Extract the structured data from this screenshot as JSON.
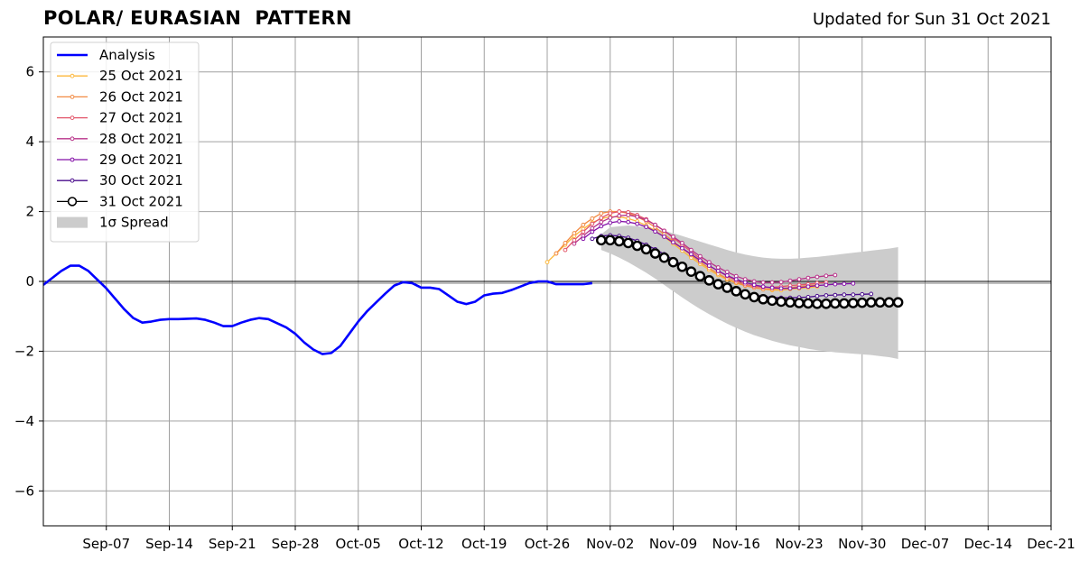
{
  "header": {
    "title": "POLAR/ EURASIAN  PATTERN",
    "subtitle": "Updated for Sun 31 Oct 2021"
  },
  "chart_data": {
    "type": "line",
    "title": "POLAR/ EURASIAN  PATTERN",
    "xlabel": "",
    "ylabel": "",
    "ylim": [
      -7,
      7
    ],
    "xlim": [
      "2021-08-31",
      "2021-12-21"
    ],
    "grid": true,
    "legend_position": "top-left",
    "x_ticks": [
      "Sep-07",
      "Sep-14",
      "Sep-21",
      "Sep-28",
      "Oct-05",
      "Oct-12",
      "Oct-19",
      "Oct-26",
      "Nov-02",
      "Nov-09",
      "Nov-16",
      "Nov-23",
      "Nov-30",
      "Dec-07",
      "Dec-14",
      "Dec-21"
    ],
    "y_ticks": [
      -6,
      -4,
      -2,
      0,
      2,
      4,
      6
    ],
    "series": [
      {
        "name": "Analysis",
        "color": "#0000ff",
        "start": "2021-08-31",
        "values": [
          -0.1,
          0.1,
          0.3,
          0.45,
          0.45,
          0.3,
          0.05,
          -0.2,
          -0.5,
          -0.8,
          -1.05,
          -1.18,
          -1.15,
          -1.1,
          -1.08,
          -1.08,
          -1.07,
          -1.06,
          -1.1,
          -1.18,
          -1.28,
          -1.28,
          -1.18,
          -1.1,
          -1.05,
          -1.08,
          -1.2,
          -1.32,
          -1.5,
          -1.75,
          -1.95,
          -2.08,
          -2.05,
          -1.85,
          -1.5,
          -1.15,
          -0.85,
          -0.6,
          -0.35,
          -0.12,
          -0.02,
          -0.05,
          -0.18,
          -0.18,
          -0.22,
          -0.4,
          -0.58,
          -0.65,
          -0.58,
          -0.4,
          -0.35,
          -0.33,
          -0.25,
          -0.15,
          -0.05,
          0.0,
          0.0,
          -0.08,
          -0.08,
          -0.08,
          -0.08,
          -0.05
        ]
      },
      {
        "name": "25 Oct 2021",
        "color": "#fcb73b",
        "start": "2021-10-26",
        "values": [
          0.55,
          0.8,
          1.05,
          1.3,
          1.5,
          1.68,
          1.8,
          1.85,
          1.85,
          1.8,
          1.72,
          1.6,
          1.45,
          1.28,
          1.08,
          0.88,
          0.68,
          0.5,
          0.33,
          0.18,
          0.05,
          -0.05,
          -0.12,
          -0.18,
          -0.22,
          -0.25,
          -0.25,
          -0.22,
          -0.2,
          -0.18,
          -0.15
        ]
      },
      {
        "name": "26 Oct 2021",
        "color": "#f28a42",
        "start": "2021-10-27",
        "values": [
          0.8,
          1.1,
          1.38,
          1.62,
          1.8,
          1.95,
          2.0,
          2.0,
          1.95,
          1.85,
          1.72,
          1.55,
          1.35,
          1.15,
          0.95,
          0.75,
          0.55,
          0.38,
          0.22,
          0.08,
          -0.03,
          -0.12,
          -0.18,
          -0.22,
          -0.22,
          -0.2,
          -0.18,
          -0.15,
          -0.12,
          -0.1
        ]
      },
      {
        "name": "27 Oct 2021",
        "color": "#e2566a",
        "start": "2021-10-28",
        "values": [
          0.9,
          1.18,
          1.42,
          1.65,
          1.82,
          1.95,
          2.0,
          1.98,
          1.9,
          1.78,
          1.62,
          1.45,
          1.25,
          1.05,
          0.85,
          0.65,
          0.45,
          0.3,
          0.15,
          0.02,
          -0.08,
          -0.14,
          -0.17,
          -0.17,
          -0.15,
          -0.12,
          -0.1,
          -0.08,
          -0.05,
          -0.03
        ]
      },
      {
        "name": "28 Oct 2021",
        "color": "#b83289",
        "start": "2021-10-29",
        "values": [
          1.08,
          1.3,
          1.52,
          1.7,
          1.82,
          1.88,
          1.9,
          1.85,
          1.76,
          1.62,
          1.45,
          1.28,
          1.1,
          0.9,
          0.72,
          0.55,
          0.4,
          0.27,
          0.15,
          0.06,
          0.0,
          -0.03,
          -0.03,
          -0.02,
          0.02,
          0.06,
          0.1,
          0.13,
          0.16,
          0.18
        ]
      },
      {
        "name": "29 Oct 2021",
        "color": "#8410a8",
        "start": "2021-10-30",
        "values": [
          1.22,
          1.42,
          1.58,
          1.68,
          1.72,
          1.7,
          1.65,
          1.56,
          1.43,
          1.28,
          1.12,
          0.95,
          0.78,
          0.6,
          0.45,
          0.3,
          0.17,
          0.06,
          -0.03,
          -0.1,
          -0.15,
          -0.18,
          -0.2,
          -0.2,
          -0.18,
          -0.15,
          -0.12,
          -0.1,
          -0.08,
          -0.07,
          -0.06
        ]
      },
      {
        "name": "30 Oct 2021",
        "color": "#4a0c8c",
        "start": "2021-10-31",
        "values": [
          1.22,
          1.3,
          1.32,
          1.3,
          1.25,
          1.16,
          1.05,
          0.92,
          0.78,
          0.62,
          0.47,
          0.32,
          0.18,
          0.05,
          -0.07,
          -0.17,
          -0.26,
          -0.33,
          -0.39,
          -0.43,
          -0.46,
          -0.47,
          -0.47,
          -0.46,
          -0.45,
          -0.42,
          -0.4,
          -0.39,
          -0.38,
          -0.38,
          -0.37,
          -0.36
        ]
      },
      {
        "name": "31 Oct 2021",
        "color": "#000000",
        "start": "2021-11-01",
        "values": [
          1.18,
          1.18,
          1.15,
          1.1,
          1.02,
          0.92,
          0.8,
          0.68,
          0.55,
          0.42,
          0.28,
          0.15,
          0.03,
          -0.08,
          -0.18,
          -0.28,
          -0.37,
          -0.45,
          -0.51,
          -0.55,
          -0.58,
          -0.6,
          -0.62,
          -0.63,
          -0.64,
          -0.64,
          -0.63,
          -0.63,
          -0.62,
          -0.61,
          -0.6,
          -0.6,
          -0.6,
          -0.6
        ]
      }
    ],
    "spread": {
      "name": "1σ Spread",
      "color": "#cccccc",
      "start": "2021-11-01",
      "lower": [
        0.9,
        0.8,
        0.68,
        0.55,
        0.4,
        0.25,
        0.08,
        -0.1,
        -0.28,
        -0.46,
        -0.63,
        -0.79,
        -0.94,
        -1.08,
        -1.21,
        -1.33,
        -1.44,
        -1.54,
        -1.62,
        -1.7,
        -1.77,
        -1.83,
        -1.88,
        -1.93,
        -1.97,
        -2.0,
        -2.03,
        -2.05,
        -2.07,
        -2.09,
        -2.11,
        -2.14,
        -2.17,
        -2.22
      ],
      "upper": [
        1.35,
        1.55,
        1.58,
        1.6,
        1.58,
        1.55,
        1.5,
        1.45,
        1.38,
        1.3,
        1.22,
        1.14,
        1.06,
        0.98,
        0.9,
        0.83,
        0.77,
        0.72,
        0.68,
        0.66,
        0.65,
        0.65,
        0.66,
        0.68,
        0.7,
        0.73,
        0.76,
        0.79,
        0.82,
        0.85,
        0.88,
        0.91,
        0.94,
        0.98
      ]
    }
  }
}
